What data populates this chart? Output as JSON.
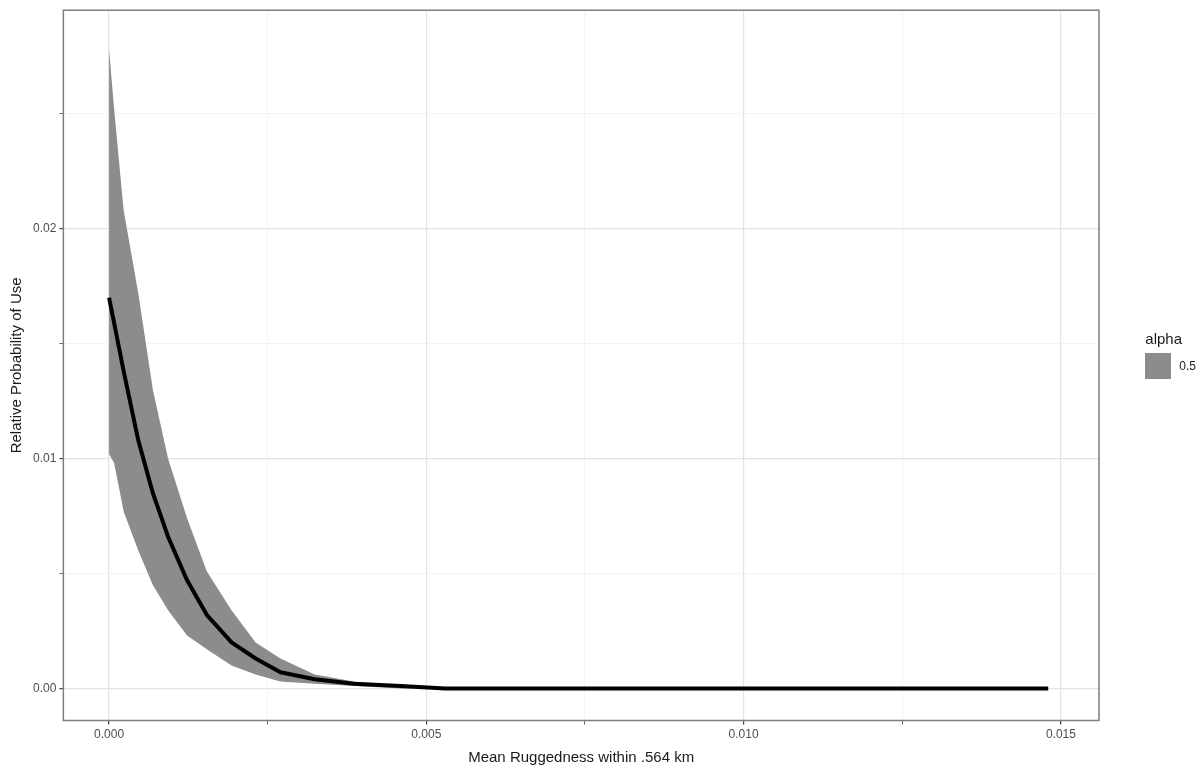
{
  "chart_data": {
    "type": "line",
    "xlabel": "Mean Ruggedness within .564 km",
    "ylabel": "Relative Probability of Use",
    "legend_title": "alpha",
    "legend": "right",
    "grid": true,
    "marker": "none",
    "line_style": "solid",
    "xlim": [
      -0.00072,
      0.0156
    ],
    "xticks": [
      {
        "value": 0,
        "label": "0.000"
      },
      {
        "value": 0.0025,
        "label": null
      },
      {
        "value": 0.005,
        "label": "0.005"
      },
      {
        "value": 0.0075,
        "label": null
      },
      {
        "value": 0.01,
        "label": "0.010"
      },
      {
        "value": 0.0125,
        "label": null
      },
      {
        "value": 0.015,
        "label": "0.015"
      }
    ],
    "ylim": [
      -0.0014,
      0.0295
    ],
    "yticks": [
      {
        "value": 0,
        "label": "0.00"
      },
      {
        "value": 0.005,
        "label": null
      },
      {
        "value": 0.01,
        "label": "0.01"
      },
      {
        "value": 0.015,
        "label": null
      },
      {
        "value": 0.02,
        "label": "0.02"
      },
      {
        "value": 0.025,
        "label": null
      }
    ],
    "series": [
      {
        "name": "0.5",
        "color": "#000000",
        "x": [
          0,
          8e-05,
          0.00023,
          0.00046,
          0.00069,
          0.00093,
          0.00123,
          0.00154,
          0.00193,
          0.00231,
          0.0027,
          0.00324,
          0.00386,
          0.0046,
          0.0053,
          0.0148
        ],
        "values": [
          0.017,
          0.0159,
          0.0138,
          0.0108,
          0.0085,
          0.0066,
          0.0047,
          0.0032,
          0.002,
          0.0013,
          0.0007,
          0.0004,
          0.0002,
          0.0001,
          0,
          0
        ],
        "lower": [
          0.0102,
          0.0098,
          0.0077,
          0.006,
          0.0045,
          0.0034,
          0.0023,
          0.0017,
          0.001,
          0.0006,
          0.0003,
          0.0002,
          0.0001,
          0,
          0,
          0
        ],
        "upper": [
          0.0278,
          0.0252,
          0.0208,
          0.0172,
          0.013,
          0.01,
          0.0074,
          0.0051,
          0.0034,
          0.002,
          0.0013,
          0.0006,
          0.0003,
          0.0001,
          0,
          0
        ]
      }
    ]
  }
}
